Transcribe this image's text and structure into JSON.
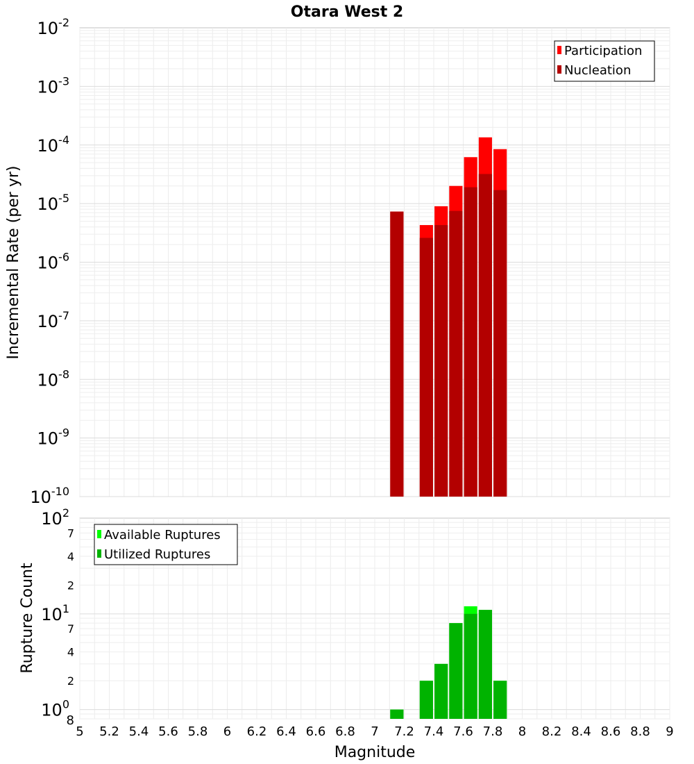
{
  "chart_data": [
    {
      "type": "bar",
      "title": "Otara West 2",
      "ylabel": "Incremental Rate (per yr)",
      "y_scale": "log",
      "ylim": [
        1e-10,
        0.01
      ],
      "xlim": [
        5,
        9
      ],
      "legend_position": "top-right",
      "grid": true,
      "y_ticks": [
        {
          "base": "10",
          "exp": "-10"
        },
        {
          "base": "10",
          "exp": "-9"
        },
        {
          "base": "10",
          "exp": "-8"
        },
        {
          "base": "10",
          "exp": "-7"
        },
        {
          "base": "10",
          "exp": "-6"
        },
        {
          "base": "10",
          "exp": "-5"
        },
        {
          "base": "10",
          "exp": "-4"
        },
        {
          "base": "10",
          "exp": "-3"
        },
        {
          "base": "10",
          "exp": "-2"
        }
      ],
      "bar_width": 0.09,
      "series": [
        {
          "name": "Participation",
          "color": "#ff0000",
          "x": [
            7.15,
            7.35,
            7.45,
            7.55,
            7.65,
            7.75,
            7.85
          ],
          "values": [
            7.3e-06,
            4.3e-06,
            9e-06,
            2e-05,
            6.2e-05,
            0.000135,
            8.5e-05
          ]
        },
        {
          "name": "Nucleation",
          "color": "#b30000",
          "x": [
            7.15,
            7.35,
            7.45,
            7.55,
            7.65,
            7.75,
            7.85
          ],
          "values": [
            7.3e-06,
            2.6e-06,
            4.3e-06,
            7.5e-06,
            1.9e-05,
            3.2e-05,
            1.7e-05
          ]
        }
      ]
    },
    {
      "type": "bar",
      "xlabel": "Magnitude",
      "ylabel": "Rupture Count",
      "y_scale": "log",
      "ylim": [
        0.8,
        100
      ],
      "xlim": [
        5,
        9
      ],
      "legend_position": "top-left",
      "grid": true,
      "x_ticks": [
        "5",
        "5.2",
        "5.4",
        "5.6",
        "5.8",
        "6",
        "6.2",
        "6.4",
        "6.6",
        "6.8",
        "7",
        "7.2",
        "7.4",
        "7.6",
        "7.8",
        "8",
        "8.2",
        "8.4",
        "8.6",
        "8.8",
        "9"
      ],
      "y_major_ticks": [
        {
          "base": "10",
          "exp": "0"
        },
        {
          "base": "10",
          "exp": "1"
        },
        {
          "base": "10",
          "exp": "2"
        }
      ],
      "y_minor_ticks": [
        "2",
        "4",
        "7",
        "2",
        "4",
        "7"
      ],
      "y_bottom_label": "8",
      "bar_width": 0.09,
      "series": [
        {
          "name": "Available Ruptures",
          "color": "#00ff00",
          "x": [
            7.15,
            7.35,
            7.45,
            7.55,
            7.65,
            7.75,
            7.85
          ],
          "values": [
            1,
            2,
            3,
            8,
            12,
            11,
            2
          ]
        },
        {
          "name": "Utilized Ruptures",
          "color": "#00b300",
          "x": [
            7.15,
            7.35,
            7.45,
            7.55,
            7.65,
            7.75,
            7.85
          ],
          "values": [
            1,
            2,
            3,
            8,
            10,
            11,
            2
          ]
        }
      ]
    }
  ]
}
